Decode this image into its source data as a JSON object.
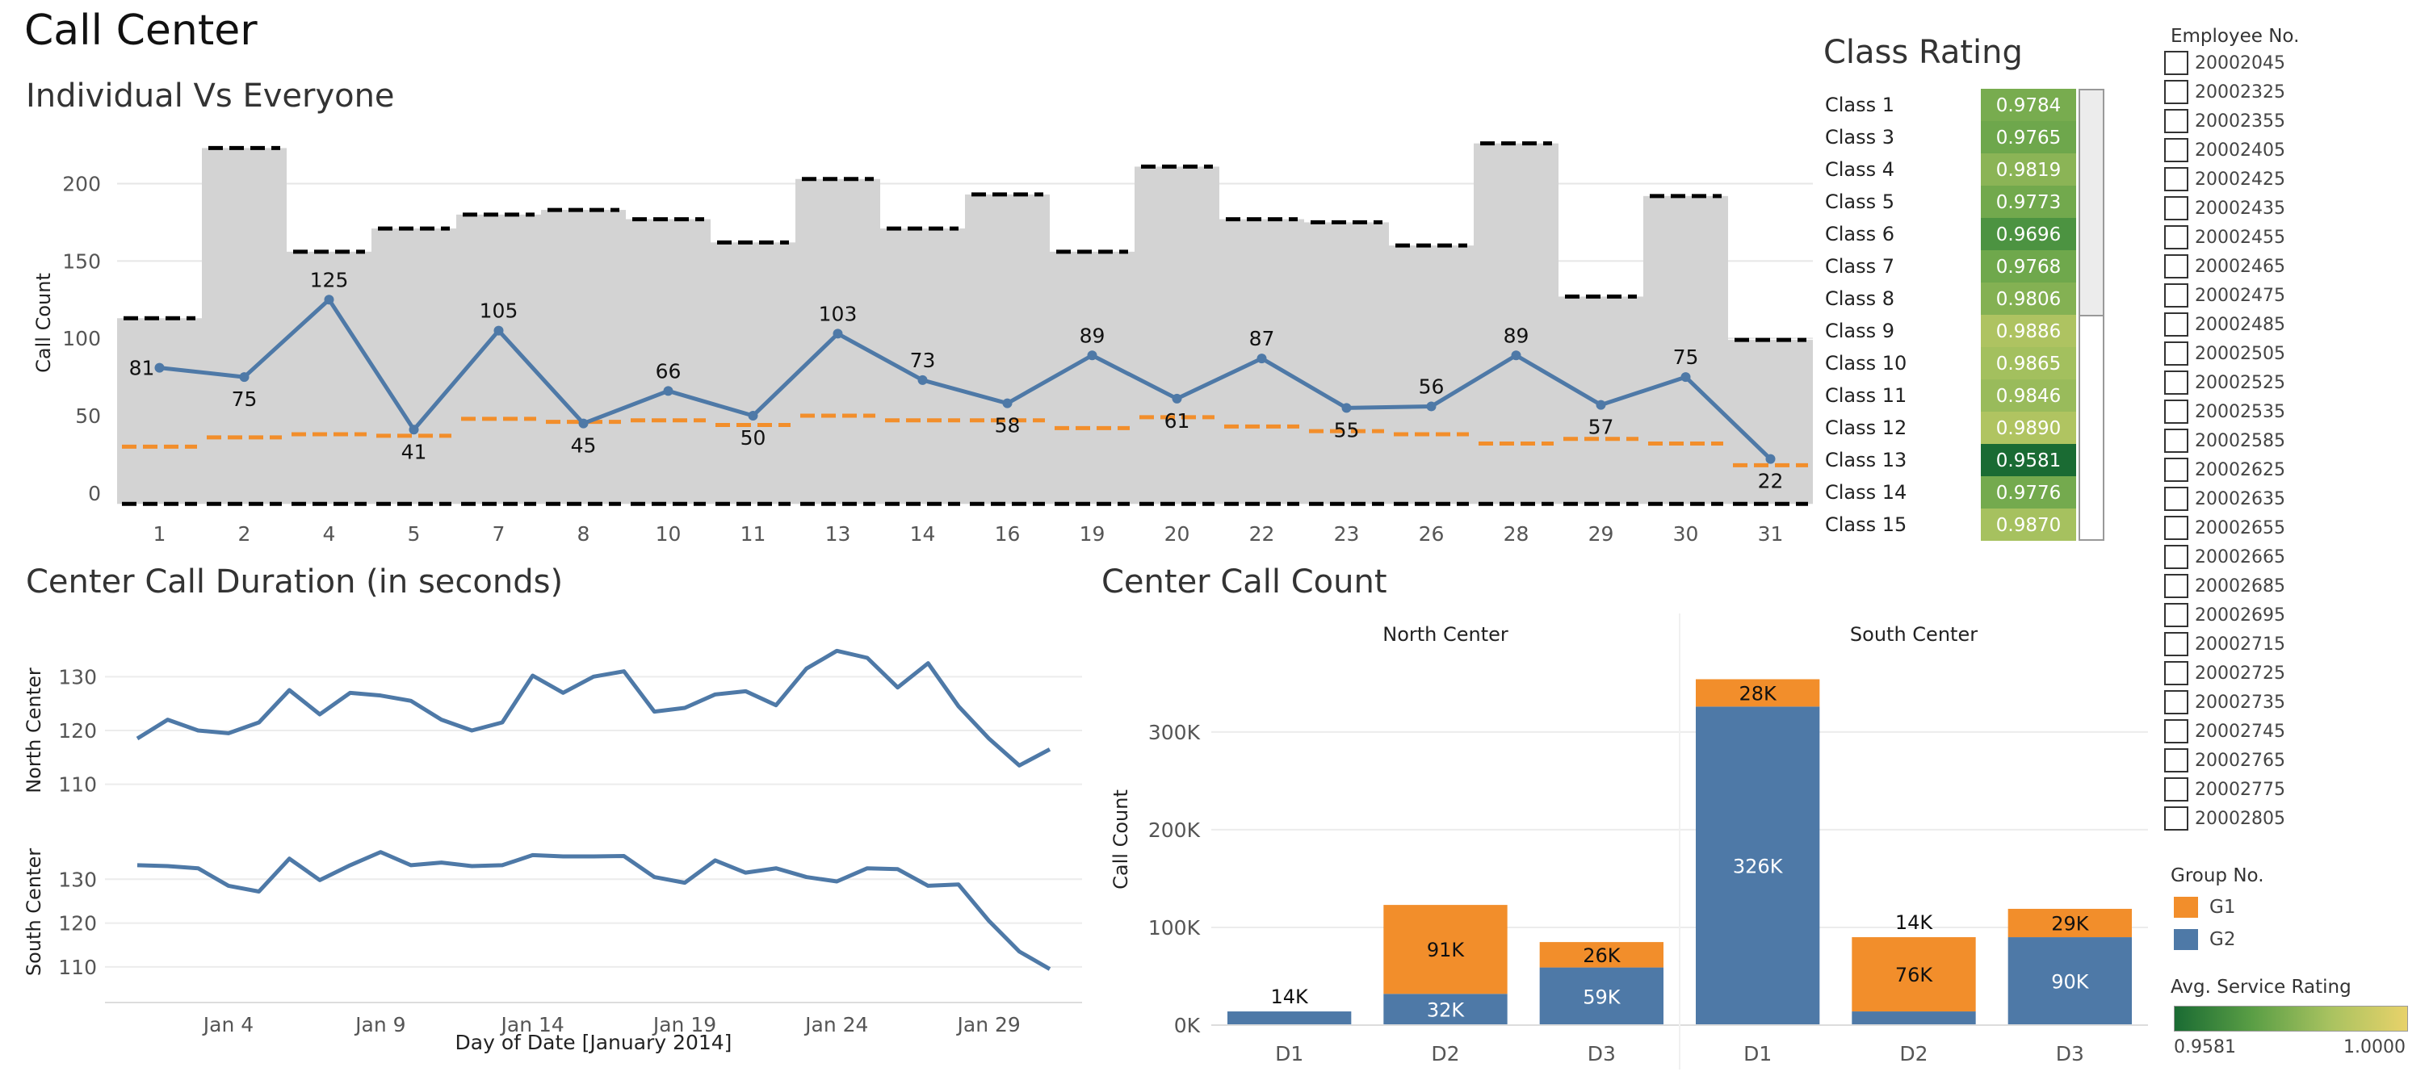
{
  "dashboard": {
    "title": "Call Center"
  },
  "colors": {
    "series_blue": "#4e79a7",
    "series_orange": "#f28e2b",
    "band_gray": "#d3d3d3",
    "everyone_dash": "#000000",
    "rating_low": "#1a6b33",
    "rating_high": "#e8d26a"
  },
  "chart_data": [
    {
      "id": "individual_vs_everyone",
      "type": "line",
      "title": "Individual Vs Everyone",
      "ylabel": "Call Count",
      "xlabel": "",
      "ylim": [
        -10,
        230
      ],
      "yticks": [
        0,
        50,
        100,
        150,
        200
      ],
      "categories": [
        "1",
        "2",
        "4",
        "5",
        "7",
        "8",
        "10",
        "11",
        "13",
        "14",
        "16",
        "19",
        "20",
        "22",
        "23",
        "26",
        "28",
        "29",
        "30",
        "31"
      ],
      "series": [
        {
          "role": "everyone_max_bars",
          "values": [
            113,
            223,
            156,
            171,
            180,
            183,
            177,
            162,
            203,
            171,
            193,
            156,
            211,
            177,
            175,
            160,
            226,
            127,
            192,
            99
          ]
        },
        {
          "role": "individual_line",
          "values": [
            81,
            75,
            125,
            41,
            105,
            45,
            66,
            50,
            103,
            73,
            58,
            89,
            61,
            87,
            55,
            56,
            89,
            57,
            75,
            22
          ],
          "labels_shown": true
        },
        {
          "role": "average_dash",
          "values": [
            30,
            36,
            38,
            37,
            48,
            46,
            47,
            44,
            50,
            47,
            47,
            42,
            49,
            43,
            40,
            38,
            32,
            35,
            32,
            18
          ]
        },
        {
          "role": "min_dash",
          "values": [
            -7,
            -7,
            -7,
            -7,
            -7,
            -7,
            -7,
            -7,
            -7,
            -7,
            -7,
            -7,
            -7,
            -7,
            -7,
            -7,
            -7,
            -7,
            -7,
            -7
          ]
        }
      ],
      "grid": true
    },
    {
      "id": "center_call_duration",
      "type": "line",
      "title": "Center Call Duration (in seconds)",
      "xlabel": "Day of Date [January 2014]",
      "x": [
        1,
        2,
        3,
        4,
        5,
        6,
        7,
        8,
        9,
        10,
        11,
        12,
        13,
        14,
        15,
        16,
        17,
        18,
        19,
        20,
        21,
        22,
        23,
        24,
        25,
        26,
        27,
        28,
        29,
        30,
        31
      ],
      "xticks": [
        {
          "day": 4,
          "label": "Jan 4"
        },
        {
          "day": 9,
          "label": "Jan 9"
        },
        {
          "day": 14,
          "label": "Jan 14"
        },
        {
          "day": 19,
          "label": "Jan 19"
        },
        {
          "day": 24,
          "label": "Jan 24"
        },
        {
          "day": 29,
          "label": "Jan 29"
        }
      ],
      "panels": [
        {
          "name": "North Center",
          "ylim": [
            105,
            135
          ],
          "yticks": [
            110,
            120,
            130
          ],
          "values": [
            118.5,
            122,
            120,
            119.5,
            121.5,
            127.5,
            123,
            127,
            126.5,
            125.5,
            122,
            120,
            121.5,
            130.2,
            127,
            130,
            131,
            123.5,
            124.2,
            126.7,
            127.3,
            124.7,
            131.5,
            134.8,
            133.5,
            128,
            132.5,
            124.5,
            118.5,
            113.5,
            116.5
          ]
        },
        {
          "name": "South Center",
          "ylim": [
            105,
            140
          ],
          "yticks": [
            110,
            120,
            130
          ],
          "values": [
            133.2,
            133,
            132.5,
            128.5,
            127.2,
            134.7,
            129.8,
            133.2,
            136.2,
            133.2,
            133.8,
            133,
            133.2,
            135.5,
            135.2,
            135.2,
            135.3,
            130.5,
            129.2,
            134.3,
            131.5,
            132.5,
            130.5,
            129.5,
            132.5,
            132.3,
            128.5,
            128.8,
            120.5,
            113.5,
            109.5
          ]
        }
      ],
      "grid": true
    },
    {
      "id": "center_call_count",
      "type": "bar",
      "title": "Center Call Count",
      "ylabel": "Call Count",
      "ylim": [
        0,
        380000
      ],
      "yticks": [
        {
          "v": 0,
          "label": "0K"
        },
        {
          "v": 100000,
          "label": "100K"
        },
        {
          "v": 200000,
          "label": "200K"
        },
        {
          "v": 300000,
          "label": "300K"
        }
      ],
      "stacked": true,
      "groups": [
        {
          "name": "North Center",
          "categories": [
            "D1",
            "D2",
            "D3"
          ],
          "G2": [
            14000,
            32000,
            59000
          ],
          "G1": [
            0,
            91000,
            26000
          ],
          "G2_labels": [
            "14K",
            "32K",
            "59K"
          ],
          "G1_labels": [
            "",
            "91K",
            "26K"
          ]
        },
        {
          "name": "South Center",
          "categories": [
            "D1",
            "D2",
            "D3"
          ],
          "G2": [
            326000,
            14000,
            90000
          ],
          "G1": [
            28000,
            76000,
            29000
          ],
          "G2_labels": [
            "326K",
            "14K",
            "90K"
          ],
          "G1_labels": [
            "28K",
            "76K",
            "29K"
          ]
        }
      ]
    },
    {
      "id": "class_rating",
      "type": "heatmap",
      "title": "Class Rating",
      "rows": [
        "Class 1",
        "Class 3",
        "Class 4",
        "Class 5",
        "Class 6",
        "Class 7",
        "Class 8",
        "Class 9",
        "Class 10",
        "Class 11",
        "Class 12",
        "Class 13",
        "Class 14",
        "Class 15"
      ],
      "values": [
        0.9784,
        0.9765,
        0.9819,
        0.9773,
        0.9696,
        0.9768,
        0.9806,
        0.9886,
        0.9865,
        0.9846,
        0.989,
        0.9581,
        0.9776,
        0.987
      ],
      "labels": [
        "0.9784",
        "0.9765",
        "0.9819",
        "0.9773",
        "0.9696",
        "0.9768",
        "0.9806",
        "0.9886",
        "0.9865",
        "0.9846",
        "0.9890",
        "0.9581",
        "0.9776",
        "0.9870"
      ]
    }
  ],
  "filters": {
    "employee": {
      "title": "Employee No.",
      "items": [
        "20002045",
        "20002325",
        "20002355",
        "20002405",
        "20002425",
        "20002435",
        "20002455",
        "20002465",
        "20002475",
        "20002485",
        "20002505",
        "20002525",
        "20002535",
        "20002585",
        "20002625",
        "20002635",
        "20002655",
        "20002665",
        "20002685",
        "20002695",
        "20002715",
        "20002725",
        "20002735",
        "20002745",
        "20002765",
        "20002775",
        "20002805"
      ]
    }
  },
  "legends": {
    "group": {
      "title": "Group No.",
      "items": [
        {
          "label": "G1",
          "color": "#f28e2b"
        },
        {
          "label": "G2",
          "color": "#4e79a7"
        }
      ]
    },
    "rating": {
      "title": "Avg. Service Rating",
      "min_label": "0.9581",
      "max_label": "1.0000"
    }
  }
}
